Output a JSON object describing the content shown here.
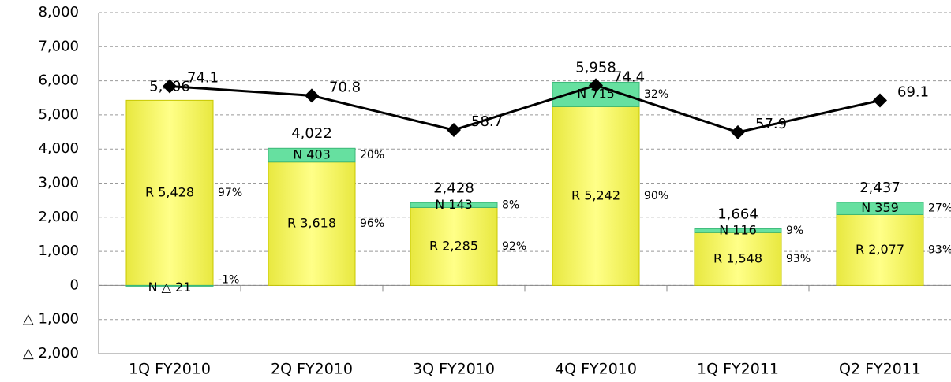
{
  "chart_data": {
    "type": "bar",
    "categories": [
      "1Q FY2010",
      "2Q FY2010",
      "3Q FY2010",
      "4Q FY2010",
      "1Q FY2011",
      "Q2 FY2011"
    ],
    "series": [
      {
        "color": "#ffff66",
        "values": [
          5428,
          3618,
          2285,
          5242,
          1548,
          2077
        ],
        "value_labels": [
          "R 5,428",
          "R 3,618",
          "R 2,285",
          "R 5,242",
          "R 1,548",
          "R 2,077"
        ],
        "share_labels": [
          "97%",
          "96%",
          "92%",
          "90%",
          "93%",
          "93%"
        ]
      },
      {
        "color": "#66e0a0",
        "values": [
          -21,
          403,
          143,
          715,
          116,
          359
        ],
        "value_labels": [
          "N △ 21",
          "N 403",
          "N 143",
          "N 715",
          "N 116",
          "N 359"
        ],
        "share_labels": [
          "-1%",
          "20%",
          "8%",
          "32%",
          "9%",
          "27%"
        ]
      },
      {
        "type": "line",
        "axis": "y2",
        "color": "#000000",
        "values": [
          74.1,
          70.8,
          58.7,
          74.4,
          57.9,
          69.1
        ]
      }
    ],
    "totals": [
      5406,
      4022,
      2428,
      5958,
      1664,
      2437
    ],
    "total_labels": [
      "5,406",
      "4,022",
      "2,428",
      "5,958",
      "1,664",
      "2,437"
    ],
    "ylim": [
      -2000,
      8000
    ],
    "yticks": [
      {
        "value": 8000,
        "label": "8,000"
      },
      {
        "value": 7000,
        "label": "7,000"
      },
      {
        "value": 6000,
        "label": "6,000"
      },
      {
        "value": 5000,
        "label": "5,000"
      },
      {
        "value": 4000,
        "label": "4,000"
      },
      {
        "value": 3000,
        "label": "3,000"
      },
      {
        "value": 2000,
        "label": "2,000"
      },
      {
        "value": 1000,
        "label": "1,000"
      },
      0,
      {
        "value": -1000,
        "label": "△ 1,000"
      },
      {
        "value": -2000,
        "label": "△ 2,000"
      }
    ],
    "y2lim": [
      -20,
      100
    ],
    "grid": true
  }
}
